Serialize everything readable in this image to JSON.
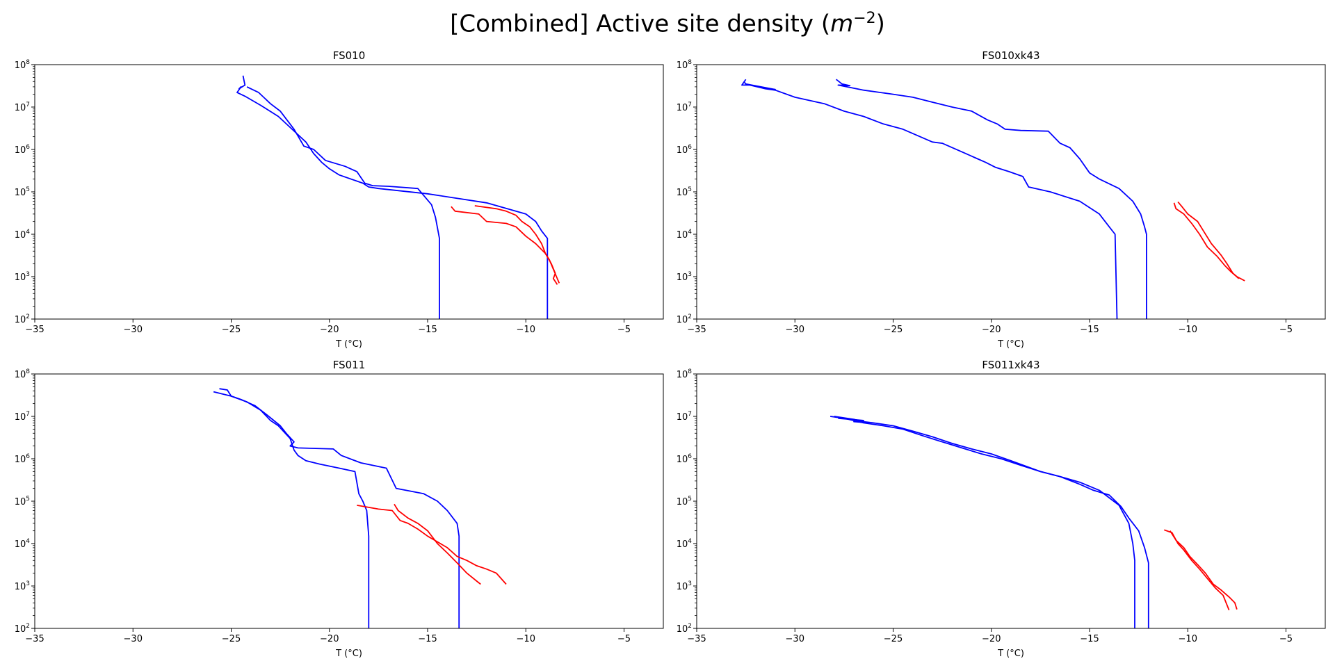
{
  "figure": {
    "title_prefix": "[Combined] Active site density (",
    "title_var": "m",
    "title_exp": "−2",
    "title_suffix": ")"
  },
  "chart_data": [
    {
      "type": "line",
      "title": "FS010",
      "xlabel": "T (°C)",
      "xlim": [
        -35,
        -3
      ],
      "ylim": [
        100,
        100000000
      ],
      "yscale": "log",
      "xticks": [
        -35,
        -30,
        -25,
        -20,
        -15,
        -10,
        -5
      ],
      "xtick_labels": [
        "−35",
        "−30",
        "−25",
        "−20",
        "−15",
        "−10",
        "−5"
      ],
      "yticks": [
        100,
        1000,
        10000,
        100000,
        1000000,
        10000000,
        100000000
      ],
      "ytick_mantissa": [
        "10",
        "10",
        "10",
        "10",
        "10",
        "10",
        "10"
      ],
      "ytick_exponents": [
        "2",
        "3",
        "4",
        "5",
        "6",
        "7",
        "8"
      ],
      "series": [
        {
          "color": "#0000ff",
          "x": [
            -24.4,
            -24.3,
            -24.6,
            -24.5,
            -24.7,
            -24.3,
            -23.5,
            -22.6,
            -21.9,
            -21.2,
            -20.8,
            -20.4,
            -20.0,
            -19.5,
            -18.3,
            -18.0,
            -17.5,
            -15.0,
            -12.0,
            -10.0,
            -9.5,
            -9.2,
            -8.9,
            -8.9
          ],
          "y": [
            55000000,
            33000000,
            27000000,
            30000000,
            22000000,
            18000000,
            11000000,
            6000000,
            3000000,
            1500000,
            800000,
            500000,
            350000,
            250000,
            160000,
            130000,
            120000,
            90000,
            55000,
            30000,
            20000,
            12000,
            8000,
            100
          ]
        },
        {
          "color": "#0000ff",
          "x": [
            -24.2,
            -24.0,
            -23.6,
            -23.0,
            -22.5,
            -21.8,
            -21.3,
            -20.8,
            -20.2,
            -19.2,
            -18.6,
            -18.2,
            -17.8,
            -17.0,
            -15.5,
            -14.8,
            -14.6,
            -14.4,
            -14.4
          ],
          "y": [
            30000000,
            27000000,
            22000000,
            12000000,
            8000000,
            3000000,
            1200000,
            1000000,
            550000,
            400000,
            300000,
            160000,
            140000,
            135000,
            120000,
            50000,
            25000,
            8000,
            100
          ]
        },
        {
          "color": "#ff0000",
          "x": [
            -13.8,
            -13.6,
            -12.4,
            -12.0,
            -11.0,
            -10.5,
            -10.0,
            -9.5,
            -9.0,
            -8.7,
            -8.5,
            -8.6,
            -8.4
          ],
          "y": [
            45000,
            35000,
            30000,
            20000,
            18000,
            15000,
            9000,
            6000,
            3500,
            2000,
            1200,
            900,
            650
          ]
        },
        {
          "color": "#ff0000",
          "x": [
            -12.6,
            -11.5,
            -11.0,
            -10.5,
            -10.2,
            -9.8,
            -9.5,
            -9.2,
            -9.0,
            -8.8,
            -8.6,
            -8.4,
            -8.3
          ],
          "y": [
            47000,
            40000,
            35000,
            28000,
            20000,
            15000,
            10000,
            6000,
            3500,
            2500,
            1500,
            900,
            700
          ]
        }
      ]
    },
    {
      "type": "line",
      "title": "FS010xk43",
      "xlabel": "T (°C)",
      "xlim": [
        -35,
        -3
      ],
      "ylim": [
        100,
        100000000
      ],
      "yscale": "log",
      "xticks": [
        -35,
        -30,
        -25,
        -20,
        -15,
        -10,
        -5
      ],
      "xtick_labels": [
        "−35",
        "−30",
        "−25",
        "−20",
        "−15",
        "−10",
        "−5"
      ],
      "yticks": [
        100,
        1000,
        10000,
        100000,
        1000000,
        10000000,
        100000000
      ],
      "ytick_mantissa": [
        "10",
        "10",
        "10",
        "10",
        "10",
        "10",
        "10"
      ],
      "ytick_exponents": [
        "2",
        "3",
        "4",
        "5",
        "6",
        "7",
        "8"
      ],
      "series": [
        {
          "color": "#0000ff",
          "x": [
            -32.5,
            -32.7,
            -32.3,
            -31.5,
            -31.0,
            -30.0,
            -28.5,
            -27.5,
            -26.5,
            -25.5,
            -24.5,
            -23.0,
            -22.5,
            -21.3,
            -20.7,
            -20.3,
            -19.8,
            -19.1,
            -18.4,
            -18.1,
            -17.0,
            -15.5,
            -14.5,
            -14.0,
            -13.7,
            -13.6
          ],
          "y": [
            45000000,
            33000000,
            33000000,
            27000000,
            25000000,
            17000000,
            12000000,
            8000000,
            6000000,
            4000000,
            3000000,
            1500000,
            1400000,
            800000,
            600000,
            500000,
            380000,
            300000,
            230000,
            130000,
            100000,
            60000,
            30000,
            15000,
            10000,
            100
          ]
        },
        {
          "color": "#0000ff",
          "x": [
            -32.6,
            -32.5,
            -31.5,
            -31.0,
            -32.5
          ],
          "y": [
            40000000,
            35000000,
            28000000,
            26000000,
            35000000
          ]
        },
        {
          "color": "#0000ff",
          "x": [
            -27.9,
            -27.6,
            -27.2,
            -27.8,
            -26.5,
            -25.0,
            -24.0,
            -23.0,
            -22.0,
            -21.0,
            -20.2,
            -19.7,
            -19.3,
            -18.5,
            -17.1,
            -16.5,
            -16.0,
            -15.5,
            -15.0,
            -14.5,
            -13.5,
            -12.8,
            -12.4,
            -12.2,
            -12.1,
            -12.1
          ],
          "y": [
            45000000,
            35000000,
            32000000,
            33000000,
            25000000,
            20000000,
            17000000,
            13000000,
            10000000,
            8000000,
            5000000,
            4000000,
            3000000,
            2800000,
            2700000,
            1400000,
            1100000,
            600000,
            280000,
            200000,
            120000,
            60000,
            30000,
            15000,
            10000,
            100
          ]
        },
        {
          "color": "#ff0000",
          "x": [
            -10.7,
            -10.6,
            -10.2,
            -9.8,
            -9.4,
            -9.0,
            -8.5,
            -8.1,
            -7.8,
            -7.5,
            -7.1
          ],
          "y": [
            55000,
            40000,
            30000,
            18000,
            10000,
            5000,
            3000,
            1800,
            1300,
            1000,
            800
          ]
        },
        {
          "color": "#ff0000",
          "x": [
            -10.5,
            -10.3,
            -10.0,
            -9.5,
            -9.2,
            -8.8,
            -8.3,
            -8.0,
            -7.7,
            -7.4
          ],
          "y": [
            58000,
            45000,
            30000,
            20000,
            12000,
            6000,
            3200,
            2000,
            1200,
            900
          ]
        }
      ]
    },
    {
      "type": "line",
      "title": "FS011",
      "xlabel": "T (°C)",
      "xlim": [
        -35,
        -3
      ],
      "ylim": [
        100,
        100000000
      ],
      "yscale": "log",
      "xticks": [
        -35,
        -30,
        -25,
        -20,
        -15,
        -10,
        -5
      ],
      "xtick_labels": [
        "−35",
        "−30",
        "−25",
        "−20",
        "−15",
        "−10",
        "−5"
      ],
      "yticks": [
        100,
        1000,
        10000,
        100000,
        1000000,
        10000000,
        100000000
      ],
      "ytick_mantissa": [
        "10",
        "10",
        "10",
        "10",
        "10",
        "10",
        "10"
      ],
      "ytick_exponents": [
        "2",
        "3",
        "4",
        "5",
        "6",
        "7",
        "8"
      ],
      "series": [
        {
          "color": "#0000ff",
          "x": [
            -25.6,
            -25.2,
            -25.0,
            -24.2,
            -23.5,
            -23.0,
            -22.6,
            -22.0,
            -21.8,
            -21.6,
            -21.2,
            -20.5,
            -19.5,
            -18.7,
            -18.5,
            -18.3,
            -18.1,
            -18.0,
            -18.0
          ],
          "y": [
            45000000,
            42000000,
            30000000,
            22000000,
            14000000,
            8000000,
            6000000,
            3000000,
            1600000,
            1200000,
            900000,
            750000,
            600000,
            500000,
            150000,
            100000,
            60000,
            15000,
            100
          ]
        },
        {
          "color": "#0000ff",
          "x": [
            -25.9,
            -25.0,
            -24.5,
            -23.8,
            -23.2,
            -22.5,
            -22.2,
            -21.8,
            -22.0,
            -21.6,
            -19.8,
            -19.4,
            -18.4,
            -17.1,
            -16.6,
            -15.2,
            -14.5,
            -14.0,
            -13.5,
            -13.4,
            -13.4
          ],
          "y": [
            38000000,
            30000000,
            25000000,
            18000000,
            11000000,
            6000000,
            4000000,
            2500000,
            2000000,
            1800000,
            1700000,
            1200000,
            800000,
            600000,
            200000,
            150000,
            100000,
            60000,
            30000,
            15000,
            100
          ]
        },
        {
          "color": "#ff0000",
          "x": [
            -18.6,
            -17.5,
            -16.8,
            -16.4,
            -16.0,
            -15.5,
            -15.0,
            -14.5,
            -14.0,
            -13.5,
            -13.0,
            -12.5,
            -12.0,
            -11.5,
            -11.0
          ],
          "y": [
            80000,
            65000,
            60000,
            35000,
            30000,
            22000,
            15000,
            11000,
            8000,
            5000,
            4000,
            3000,
            2500,
            2000,
            1100
          ]
        },
        {
          "color": "#ff0000",
          "x": [
            -16.7,
            -16.5,
            -16.0,
            -15.5,
            -15.0,
            -14.5,
            -14.0,
            -13.5,
            -13.0,
            -12.5,
            -12.3
          ],
          "y": [
            85000,
            60000,
            40000,
            30000,
            20000,
            10000,
            6000,
            3500,
            2000,
            1300,
            1100
          ]
        }
      ]
    },
    {
      "type": "line",
      "title": "FS011xk43",
      "xlabel": "T (°C)",
      "xlim": [
        -35,
        -3
      ],
      "ylim": [
        100,
        100000000
      ],
      "yscale": "log",
      "xticks": [
        -35,
        -30,
        -25,
        -20,
        -15,
        -10,
        -5
      ],
      "xtick_labels": [
        "−35",
        "−30",
        "−25",
        "−20",
        "−15",
        "−10",
        "−5"
      ],
      "yticks": [
        100,
        1000,
        10000,
        100000,
        1000000,
        10000000,
        100000000
      ],
      "ytick_mantissa": [
        "10",
        "10",
        "10",
        "10",
        "10",
        "10",
        "10"
      ],
      "ytick_exponents": [
        "2",
        "3",
        "4",
        "5",
        "6",
        "7",
        "8"
      ],
      "series": [
        {
          "color": "#0000ff",
          "x": [
            -28.2,
            -27.5,
            -26.5,
            -25.5,
            -24.5,
            -23.5,
            -22.5,
            -21.5,
            -20.5,
            -19.5,
            -18.5,
            -17.5,
            -16.5,
            -15.5,
            -14.5,
            -13.5,
            -13.0,
            -12.8,
            -12.7,
            -12.7
          ],
          "y": [
            10000000,
            9000000,
            7000000,
            6000000,
            5000000,
            3500000,
            2500000,
            1800000,
            1300000,
            1000000,
            700000,
            500000,
            380000,
            280000,
            180000,
            80000,
            30000,
            10000,
            4000,
            100
          ]
        },
        {
          "color": "#0000ff",
          "x": [
            -28.0,
            -27.0,
            -26.5,
            -26.0,
            -25.0,
            -24.0,
            -23.0,
            -22.0,
            -21.0,
            -20.0,
            -19.0,
            -17.5,
            -16.5,
            -15.5,
            -14.8,
            -14.0,
            -13.4,
            -13.0,
            -12.5,
            -12.2,
            -12.0,
            -12.0
          ],
          "y": [
            10000000,
            8500000,
            7500000,
            7000000,
            6000000,
            4500000,
            3300000,
            2300000,
            1700000,
            1300000,
            900000,
            500000,
            380000,
            250000,
            180000,
            140000,
            75000,
            40000,
            20000,
            8000,
            3500,
            100
          ]
        },
        {
          "color": "#0000ff",
          "x": [
            -27.8,
            -26.5,
            -27.0,
            -26.2
          ],
          "y": [
            9000000,
            8000000,
            7500000,
            7000000
          ]
        },
        {
          "color": "#ff0000",
          "x": [
            -11.2,
            -10.8,
            -10.5,
            -10.2,
            -9.8,
            -9.4,
            -9.0,
            -8.6,
            -8.2,
            -7.9
          ],
          "y": [
            21000,
            18000,
            10000,
            7000,
            4000,
            2500,
            1500,
            900,
            600,
            270
          ]
        },
        {
          "color": "#ff0000",
          "x": [
            -10.9,
            -10.6,
            -10.2,
            -9.9,
            -9.5,
            -9.1,
            -8.7,
            -8.3,
            -7.9,
            -7.6,
            -7.5
          ],
          "y": [
            20000,
            12000,
            8000,
            5000,
            3200,
            2000,
            1100,
            800,
            550,
            400,
            280
          ]
        }
      ]
    }
  ]
}
